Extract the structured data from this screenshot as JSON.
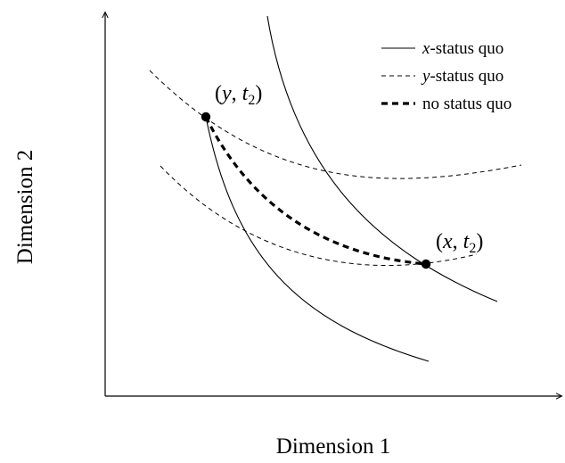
{
  "axes": {
    "x_label": "Dimension 1",
    "y_label": "Dimension 2"
  },
  "legend": {
    "items": [
      {
        "var": "x",
        "suffix": "-status quo",
        "style": "solid"
      },
      {
        "var": "y",
        "suffix": "-status quo",
        "style": "dashed"
      },
      {
        "var": "",
        "suffix": "no status quo",
        "style": "thick-dashed"
      }
    ]
  },
  "points": [
    {
      "var": "y",
      "sub": "2",
      "name": "point-y-t2"
    },
    {
      "var": "x",
      "sub": "2",
      "name": "point-x-t2"
    }
  ],
  "colors": {
    "ink": "#000000",
    "background": "#ffffff"
  }
}
